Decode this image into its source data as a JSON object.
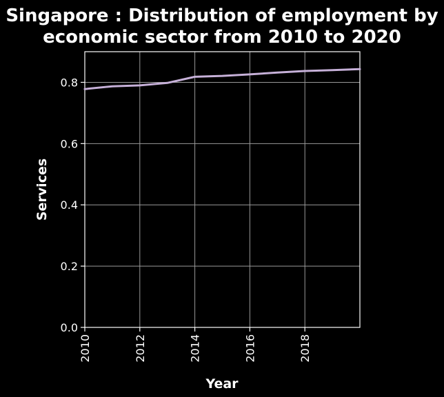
{
  "chart_data": {
    "type": "line",
    "title_lines": [
      "Singapore : Distribution of employment by",
      "economic sector from 2010 to 2020"
    ],
    "xlabel": "Year",
    "ylabel": "Services",
    "xlim": [
      2010,
      2020
    ],
    "ylim": [
      0,
      0.9
    ],
    "x_ticks": [
      2010,
      2012,
      2014,
      2016,
      2018
    ],
    "y_ticks": [
      "0.0",
      "0.2",
      "0.4",
      "0.6",
      "0.8"
    ],
    "grid": true,
    "legend": "none",
    "series": [
      {
        "color": "#c6b0d8",
        "x": [
          2010,
          2011,
          2012,
          2013,
          2014,
          2015,
          2016,
          2017,
          2018,
          2019,
          2020
        ],
        "values": [
          0.778,
          0.787,
          0.79,
          0.798,
          0.818,
          0.821,
          0.826,
          0.832,
          0.837,
          0.84,
          0.843
        ]
      }
    ]
  },
  "colors": {
    "background": "#000000",
    "grid": "#9a9a9a",
    "axis": "#ffffff",
    "text": "#ffffff"
  }
}
